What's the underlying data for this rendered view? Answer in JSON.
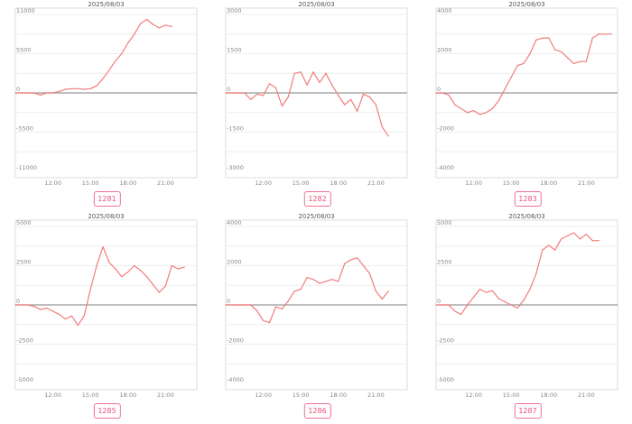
{
  "colors": {
    "line": "#f27c7c",
    "zero_line": "#999999",
    "grid": "#eeeeee",
    "frame": "#dddddd",
    "badge": "#e8507a"
  },
  "chart_data": [
    {
      "type": "line",
      "title": "2025/08/03",
      "code": "1281",
      "ylim": [
        -11000,
        11000
      ],
      "yticks": [
        11000,
        5500,
        0,
        -5500,
        -11000
      ],
      "ytick_labels": [
        "11000",
        "5500",
        "0",
        "-5500",
        "-11000"
      ],
      "xlim": [
        9.0,
        23.5
      ],
      "xticks": [
        12,
        15,
        18,
        21
      ],
      "xtick_labels": [
        "12:00",
        "15:00",
        "18:00",
        "21:00"
      ],
      "x": [
        9.0,
        9.5,
        10.0,
        10.5,
        11.0,
        11.5,
        12.0,
        12.5,
        13.0,
        13.5,
        14.0,
        14.5,
        15.0,
        15.5,
        16.0,
        16.5,
        17.0,
        17.5,
        18.0,
        18.5,
        19.0,
        19.5,
        20.0,
        20.5,
        21.0,
        21.5
      ],
      "y": [
        0,
        0,
        0,
        0,
        -300,
        0,
        0,
        200,
        500,
        600,
        600,
        500,
        600,
        1000,
        2000,
        3200,
        4500,
        5500,
        7000,
        8200,
        9700,
        10300,
        9600,
        9100,
        9500,
        9300
      ]
    },
    {
      "type": "line",
      "title": "2025/08/03",
      "code": "1282",
      "ylim": [
        -3000,
        3000
      ],
      "yticks": [
        3000,
        1500,
        0,
        -1500,
        -3000
      ],
      "ytick_labels": [
        "3000",
        "1500",
        "0",
        "-1500",
        "-3000"
      ],
      "xlim": [
        9.0,
        23.5
      ],
      "xticks": [
        12,
        15,
        18,
        21
      ],
      "xtick_labels": [
        "12:00",
        "15:00",
        "18:00",
        "21:00"
      ],
      "x": [
        9.0,
        9.5,
        10.0,
        10.5,
        11.0,
        11.5,
        12.0,
        12.5,
        13.0,
        13.5,
        14.0,
        14.5,
        15.0,
        15.5,
        16.0,
        16.5,
        17.0,
        17.5,
        18.0,
        18.5,
        19.0,
        19.5,
        20.0,
        20.5,
        21.0,
        21.5,
        22.0
      ],
      "y": [
        0,
        0,
        0,
        0,
        -250,
        -50,
        -100,
        350,
        200,
        -500,
        -150,
        750,
        800,
        300,
        800,
        400,
        750,
        300,
        -100,
        -450,
        -250,
        -700,
        -50,
        -150,
        -450,
        -1300,
        -1650
      ]
    },
    {
      "type": "line",
      "title": "2025/08/03",
      "code": "1283",
      "ylim": [
        -4000,
        4000
      ],
      "yticks": [
        4000,
        2000,
        0,
        -2000,
        -4000
      ],
      "ytick_labels": [
        "4000",
        "2000",
        "0",
        "-2000",
        "-4000"
      ],
      "xlim": [
        9.0,
        23.5
      ],
      "xticks": [
        12,
        15,
        18,
        21
      ],
      "xtick_labels": [
        "12:00",
        "15:00",
        "18:00",
        "21:00"
      ],
      "x": [
        9.0,
        9.5,
        10.0,
        10.5,
        11.0,
        11.5,
        12.0,
        12.5,
        13.0,
        13.5,
        14.0,
        14.5,
        15.0,
        15.5,
        16.0,
        16.5,
        17.0,
        17.5,
        18.0,
        18.5,
        19.0,
        19.5,
        20.0,
        20.5,
        21.0,
        21.5,
        22.0,
        22.5,
        23.0
      ],
      "y": [
        0,
        0,
        -100,
        -600,
        -800,
        -1000,
        -900,
        -1100,
        -1000,
        -800,
        -400,
        200,
        800,
        1400,
        1500,
        2000,
        2700,
        2800,
        2800,
        2200,
        2100,
        1800,
        1500,
        1600,
        1600,
        2800,
        3000,
        3000,
        3000
      ]
    },
    {
      "type": "line",
      "title": "2025/08/03",
      "code": "1285",
      "ylim": [
        -5000,
        5000
      ],
      "yticks": [
        5000,
        2500,
        0,
        -2500,
        -5000
      ],
      "ytick_labels": [
        "5000",
        "2500",
        "0",
        "-2500",
        "-5000"
      ],
      "xlim": [
        9.0,
        23.5
      ],
      "xticks": [
        12,
        15,
        18,
        21
      ],
      "xtick_labels": [
        "12:00",
        "15:00",
        "18:00",
        "21:00"
      ],
      "x": [
        9.0,
        9.5,
        10.0,
        10.5,
        11.0,
        11.5,
        12.0,
        12.5,
        13.0,
        13.5,
        14.0,
        14.5,
        15.0,
        15.5,
        16.0,
        16.5,
        17.0,
        17.5,
        18.0,
        18.5,
        19.0,
        19.5,
        20.0,
        20.5,
        21.0,
        21.5,
        22.0,
        22.5
      ],
      "y": [
        0,
        0,
        0,
        -100,
        -300,
        -200,
        -400,
        -600,
        -900,
        -700,
        -1300,
        -700,
        1000,
        2500,
        3700,
        2700,
        2300,
        1800,
        2100,
        2500,
        2200,
        1800,
        1300,
        800,
        1200,
        2500,
        2300,
        2400
      ]
    },
    {
      "type": "line",
      "title": "2025/08/03",
      "code": "1286",
      "ylim": [
        -4000,
        4000
      ],
      "yticks": [
        4000,
        2000,
        0,
        -2000,
        -4000
      ],
      "ytick_labels": [
        "4000",
        "2000",
        "0",
        "-2000",
        "-4000"
      ],
      "xlim": [
        9.0,
        23.5
      ],
      "xticks": [
        12,
        15,
        18,
        21
      ],
      "xtick_labels": [
        "12:00",
        "15:00",
        "18:00",
        "21:00"
      ],
      "x": [
        9.0,
        9.5,
        10.0,
        10.5,
        11.0,
        11.5,
        12.0,
        12.5,
        13.0,
        13.5,
        14.0,
        14.5,
        15.0,
        15.5,
        16.0,
        16.5,
        17.0,
        17.5,
        18.0,
        18.5,
        19.0,
        19.5,
        20.0,
        20.5,
        21.0,
        21.5,
        22.0
      ],
      "y": [
        0,
        0,
        0,
        0,
        0,
        -300,
        -800,
        -900,
        -100,
        -200,
        200,
        700,
        800,
        1400,
        1300,
        1100,
        1200,
        1300,
        1200,
        2100,
        2300,
        2400,
        2000,
        1600,
        700,
        300,
        700
      ]
    },
    {
      "type": "line",
      "title": "2025/08/03",
      "code": "1287",
      "ylim": [
        -5000,
        5000
      ],
      "yticks": [
        5000,
        2500,
        0,
        -2500,
        -5000
      ],
      "ytick_labels": [
        "5000",
        "2500",
        "0",
        "-2500",
        "-5000"
      ],
      "xlim": [
        9.0,
        23.5
      ],
      "xticks": [
        12,
        15,
        18,
        21
      ],
      "xtick_labels": [
        "12:00",
        "15:00",
        "18:00",
        "21:00"
      ],
      "x": [
        9.0,
        9.5,
        10.0,
        10.5,
        11.0,
        11.5,
        12.0,
        12.5,
        13.0,
        13.5,
        14.0,
        14.5,
        15.0,
        15.5,
        16.0,
        16.5,
        17.0,
        17.5,
        18.0,
        18.5,
        19.0,
        19.5,
        20.0,
        20.5,
        21.0,
        21.5,
        22.0
      ],
      "y": [
        0,
        0,
        0,
        -400,
        -600,
        0,
        500,
        1000,
        800,
        900,
        400,
        200,
        0,
        -200,
        300,
        1000,
        2000,
        3500,
        3800,
        3500,
        4200,
        4400,
        4600,
        4200,
        4500,
        4100,
        4100
      ]
    }
  ]
}
